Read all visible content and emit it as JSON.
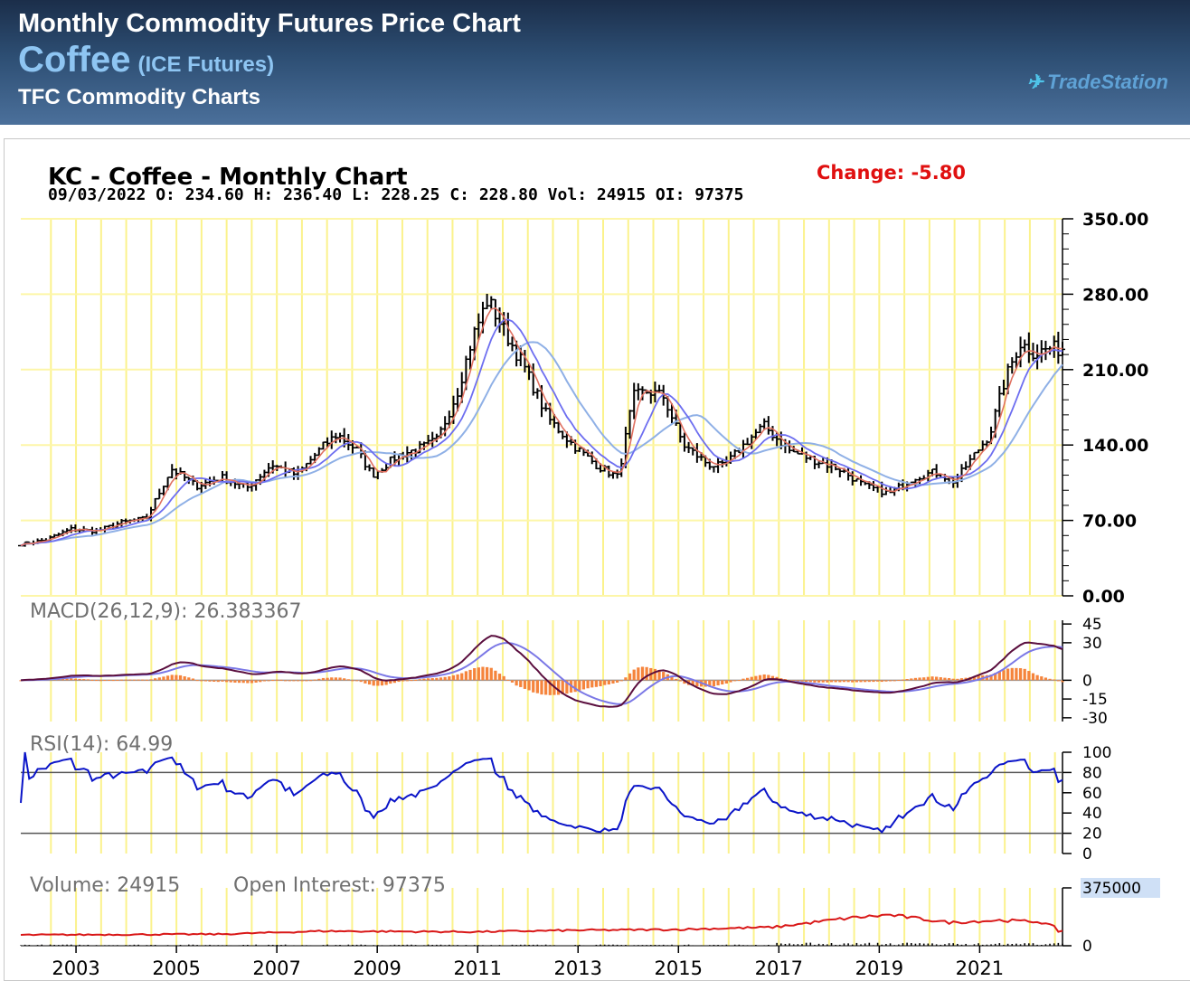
{
  "header": {
    "title": "Monthly Commodity Futures Price Chart",
    "commodity": "Coffee",
    "exchange": "(ICE Futures)",
    "subtitle": "TFC Commodity Charts",
    "brand": "TradeStation"
  },
  "chart": {
    "title": "KC - Coffee - Monthly Chart",
    "change_label": "Change: -5.80",
    "ohlc_line": "09/03/2022 O: 234.60 H: 236.40 L: 228.25 C: 228.80 Vol: 24915 OI: 97375",
    "macd_label": "MACD(26,12,9): 26.383367",
    "rsi_label": "RSI(14): 64.99",
    "volume_label": "Volume: 24915",
    "oi_label": "Open Interest: 97375",
    "vol_top_label": "375000"
  },
  "colors": {
    "grid_vertical": "#fbf28c",
    "grid_horizontal": "#fdf6a8",
    "price_bar": "#000000",
    "ma_fast": "#e07060",
    "ma_mid": "#6d6ef0",
    "ma_slow": "#8fb0e6",
    "macd_line": "#5a0e3e",
    "signal_line": "#7b78e6",
    "histogram": "#f5843c",
    "rsi": "#0a14c8",
    "open_interest": "#d91818",
    "change": "#e01010"
  },
  "chart_data": {
    "type": "bar",
    "x_ticks": [
      "2003",
      "2005",
      "2007",
      "2009",
      "2011",
      "2013",
      "2015",
      "2017",
      "2019",
      "2021"
    ],
    "price": {
      "y_ticks": [
        "350.00",
        "280.00",
        "210.00",
        "140.00",
        "70.00",
        "0.00"
      ],
      "ylim": [
        0,
        350
      ],
      "series": [
        {
          "x": 2002.0,
          "close": 48
        },
        {
          "x": 2002.5,
          "close": 52
        },
        {
          "x": 2003.0,
          "close": 62
        },
        {
          "x": 2003.5,
          "close": 60
        },
        {
          "x": 2004.0,
          "close": 68
        },
        {
          "x": 2004.5,
          "close": 72
        },
        {
          "x": 2005.0,
          "close": 118
        },
        {
          "x": 2005.5,
          "close": 102
        },
        {
          "x": 2006.0,
          "close": 110
        },
        {
          "x": 2006.5,
          "close": 100
        },
        {
          "x": 2007.0,
          "close": 122
        },
        {
          "x": 2007.5,
          "close": 112
        },
        {
          "x": 2008.0,
          "close": 138
        },
        {
          "x": 2008.3,
          "close": 150
        },
        {
          "x": 2008.7,
          "close": 135
        },
        {
          "x": 2009.0,
          "close": 112
        },
        {
          "x": 2009.5,
          "close": 130
        },
        {
          "x": 2010.0,
          "close": 138
        },
        {
          "x": 2010.3,
          "close": 145
        },
        {
          "x": 2010.7,
          "close": 190
        },
        {
          "x": 2011.0,
          "close": 240
        },
        {
          "x": 2011.3,
          "close": 275
        },
        {
          "x": 2011.7,
          "close": 240
        },
        {
          "x": 2012.0,
          "close": 215
        },
        {
          "x": 2012.5,
          "close": 165
        },
        {
          "x": 2013.0,
          "close": 140
        },
        {
          "x": 2013.5,
          "close": 120
        },
        {
          "x": 2013.9,
          "close": 110
        },
        {
          "x": 2014.2,
          "close": 185
        },
        {
          "x": 2014.5,
          "close": 190
        },
        {
          "x": 2014.8,
          "close": 185
        },
        {
          "x": 2015.2,
          "close": 140
        },
        {
          "x": 2015.7,
          "close": 122
        },
        {
          "x": 2016.0,
          "close": 120
        },
        {
          "x": 2016.5,
          "close": 145
        },
        {
          "x": 2016.8,
          "close": 158
        },
        {
          "x": 2017.3,
          "close": 135
        },
        {
          "x": 2017.8,
          "close": 126
        },
        {
          "x": 2018.3,
          "close": 118
        },
        {
          "x": 2018.8,
          "close": 102
        },
        {
          "x": 2019.3,
          "close": 95
        },
        {
          "x": 2019.8,
          "close": 110
        },
        {
          "x": 2020.2,
          "close": 115
        },
        {
          "x": 2020.6,
          "close": 106
        },
        {
          "x": 2020.9,
          "close": 125
        },
        {
          "x": 2021.3,
          "close": 150
        },
        {
          "x": 2021.6,
          "close": 200
        },
        {
          "x": 2021.9,
          "close": 235
        },
        {
          "x": 2022.2,
          "close": 225
        },
        {
          "x": 2022.5,
          "close": 230
        },
        {
          "x": 2022.7,
          "close": 228.8
        }
      ]
    },
    "macd": {
      "y_ticks": [
        "45",
        "30",
        "0",
        "-15",
        "-30"
      ],
      "ylim": [
        -33,
        48
      ]
    },
    "rsi": {
      "y_ticks": [
        "100",
        "80",
        "60",
        "40",
        "20",
        "0"
      ],
      "ylim": [
        0,
        100
      ]
    },
    "volume": {
      "y_ticks": [
        "375000",
        "0"
      ],
      "ylim": [
        0,
        375000
      ]
    }
  }
}
